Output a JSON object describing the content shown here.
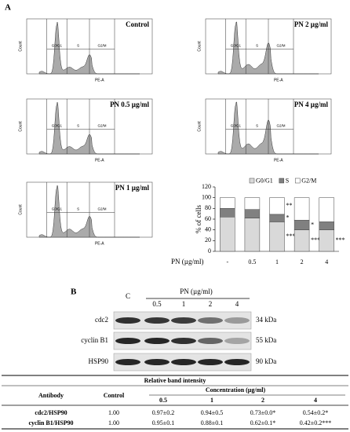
{
  "panel_a": {
    "label": "A",
    "histograms": [
      {
        "title": "Control"
      },
      {
        "title": "PN 2 µg/ml"
      },
      {
        "title": "PN 0.5 µg/ml"
      },
      {
        "title": "PN 4 µg/ml"
      },
      {
        "title": "PN 1 µg/ml"
      }
    ],
    "gates": [
      "G0/G1",
      "S",
      "G2/M"
    ],
    "x_label": "PE-A",
    "y_label": "Count"
  },
  "chart_data": {
    "type": "stacked_bar",
    "x_label": "PN (µg/ml)",
    "y_label": "% of cells",
    "categories": [
      "-",
      "0.5",
      "1",
      "2",
      "4"
    ],
    "series": [
      {
        "name": "G0/G1",
        "color": "#d9d9d9",
        "values": [
          64,
          62,
          55,
          40,
          40
        ],
        "annotations": [
          null,
          null,
          "***",
          "***",
          "***"
        ]
      },
      {
        "name": "S",
        "color": "#808080",
        "values": [
          16,
          16,
          14,
          18,
          15
        ],
        "annotations": [
          null,
          null,
          "*",
          "*",
          null
        ]
      },
      {
        "name": "G2/M",
        "color": "#ffffff",
        "values": [
          20,
          22,
          31,
          42,
          45
        ],
        "annotations": [
          null,
          null,
          "**",
          null,
          null
        ]
      }
    ],
    "ylim": [
      0,
      120
    ],
    "yticks": [
      0,
      20,
      40,
      60,
      80,
      100,
      120
    ]
  },
  "blot": {
    "label": "B",
    "treatment": "PN (µg/ml)",
    "lanes": [
      "C",
      "0.5",
      "1",
      "2",
      "4"
    ],
    "rows": [
      {
        "name": "cdc2",
        "size": "34 kDa"
      },
      {
        "name": "cyclin B1",
        "size": "55 kDa"
      },
      {
        "name": "HSP90",
        "size": "90 kDa"
      }
    ]
  },
  "table": {
    "title": "Relative band intensity",
    "headers": [
      "Antibody",
      "Control",
      "Concentration (µg/ml)"
    ],
    "concentrations": [
      "0.5",
      "1",
      "2",
      "4"
    ],
    "rows": [
      [
        "cdc2/HSP90",
        "1.00",
        "0.97±0.2",
        "0.94±0.5",
        "0.73±0.0*",
        "0.54±0.2*"
      ],
      [
        "cyclin B1/HSP90",
        "1.00",
        "0.95±0.1",
        "0.88±0.1",
        "0.62±0.1*",
        "0.42±0.2***"
      ]
    ]
  }
}
